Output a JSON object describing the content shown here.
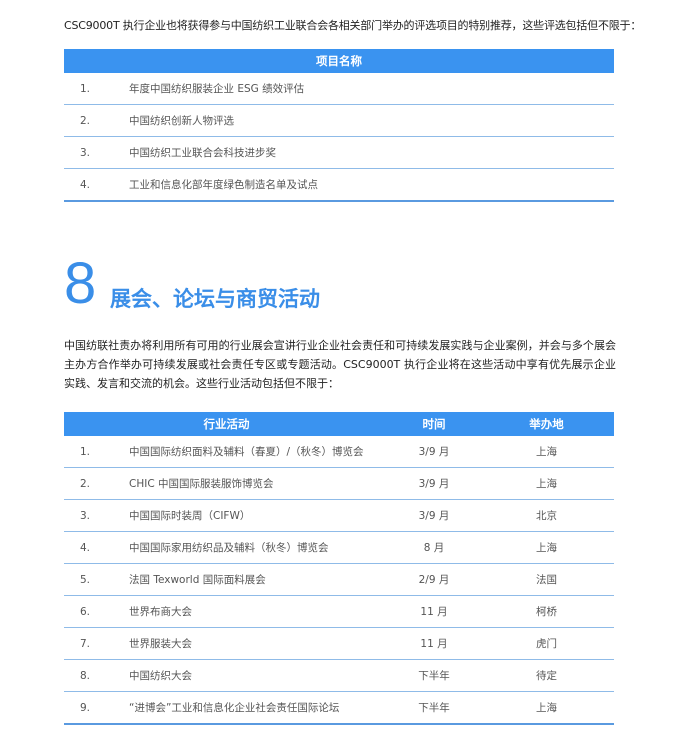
{
  "intro": "CSC9000T 执行企业也将获得参与中国纺织工业联合会各相关部门举办的评选项目的特别推荐，这些评选包括但不限于：",
  "table1": {
    "header": "项目名称",
    "rows": [
      {
        "num": "1.",
        "name": "年度中国纺织服装企业 ESG 绩效评估"
      },
      {
        "num": "2.",
        "name": "中国纺织创新人物评选"
      },
      {
        "num": "3.",
        "name": "中国纺织工业联合会科技进步奖"
      },
      {
        "num": "4.",
        "name": "工业和信息化部年度绿色制造名单及试点"
      }
    ]
  },
  "section": {
    "number": "8",
    "title": "展会、论坛与商贸活动",
    "paragraph": "中国纺联社责办将利用所有可用的行业展会宣讲行业企业社会责任和可持续发展实践与企业案例，并会与多个展会主办方合作举办可持续发展或社会责任专区或专题活动。CSC9000T 执行企业将在这些活动中享有优先展示企业实践、发言和交流的机会。这些行业活动包括但不限于："
  },
  "table2": {
    "headers": {
      "activity": "行业活动",
      "time": "时间",
      "place": "举办地"
    },
    "rows": [
      {
        "num": "1.",
        "activity": "中国国际纺织面料及辅料（春夏）/（秋冬）博览会",
        "time": "3/9 月",
        "place": "上海"
      },
      {
        "num": "2.",
        "activity": "CHIC 中国国际服装服饰博览会",
        "time": "3/9 月",
        "place": "上海"
      },
      {
        "num": "3.",
        "activity": "中国国际时装周（CIFW）",
        "time": "3/9 月",
        "place": "北京"
      },
      {
        "num": "4.",
        "activity": "中国国际家用纺织品及辅料（秋冬）博览会",
        "time": "8 月",
        "place": "上海"
      },
      {
        "num": "5.",
        "activity": "法国 Texworld 国际面料展会",
        "time": "2/9 月",
        "place": "法国"
      },
      {
        "num": "6.",
        "activity": "世界布商大会",
        "time": "11 月",
        "place": "柯桥"
      },
      {
        "num": "7.",
        "activity": "世界服装大会",
        "time": "11 月",
        "place": "虎门"
      },
      {
        "num": "8.",
        "activity": "中国纺织大会",
        "time": "下半年",
        "place": "待定"
      },
      {
        "num": "9.",
        "activity": "“进博会”工业和信息化企业社会责任国际论坛",
        "time": "下半年",
        "place": "上海"
      }
    ]
  },
  "colors": {
    "accent": "#3a93f0",
    "heading": "#3a8ee8"
  }
}
